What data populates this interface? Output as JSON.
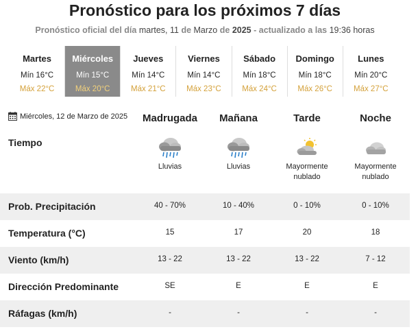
{
  "header": {
    "title": "Pronóstico para los próximos 7 días",
    "subtitle_part1": "Pronóstico oficial del día",
    "subtitle_date_pre": "martes, 11",
    "subtitle_de1": "de",
    "subtitle_month": "Marzo",
    "subtitle_de2": "de",
    "subtitle_year": "2025",
    "subtitle_part2": "- actualizado a las",
    "subtitle_time": "19:36 horas"
  },
  "days": [
    {
      "name": "Martes",
      "min": "Mín 16°C",
      "max": "Máx 22°C",
      "active": false
    },
    {
      "name": "Miércoles",
      "min": "Mín 15°C",
      "max": "Máx 20°C",
      "active": true
    },
    {
      "name": "Jueves",
      "min": "Mín 14°C",
      "max": "Máx 21°C",
      "active": false
    },
    {
      "name": "Viernes",
      "min": "Mín 14°C",
      "max": "Máx 23°C",
      "active": false
    },
    {
      "name": "Sábado",
      "min": "Mín 18°C",
      "max": "Máx 24°C",
      "active": false
    },
    {
      "name": "Domingo",
      "min": "Mín 18°C",
      "max": "Máx 26°C",
      "active": false
    },
    {
      "name": "Lunes",
      "min": "Mín 20°C",
      "max": "Máx 27°C",
      "active": false
    }
  ],
  "detail": {
    "date": "Miércoles, 12 de Marzo de 2025",
    "date_icon": "calendar-icon",
    "columns": [
      "Madrugada",
      "Mañana",
      "Tarde",
      "Noche"
    ],
    "weather_label": "Tiempo",
    "weather": [
      {
        "icon": "rain-cloud-icon",
        "desc1": "Lluvias",
        "desc2": ""
      },
      {
        "icon": "rain-cloud-icon",
        "desc1": "Lluvias",
        "desc2": ""
      },
      {
        "icon": "partly-cloudy-day-icon",
        "desc1": "Mayormente",
        "desc2": "nublado"
      },
      {
        "icon": "partly-cloudy-night-icon",
        "desc1": "Mayormente",
        "desc2": "nublado"
      }
    ],
    "rows": [
      {
        "label": "Prob. Precipitación",
        "values": [
          "40 - 70%",
          "10 - 40%",
          "0 - 10%",
          "0 - 10%"
        ]
      },
      {
        "label": "Temperatura (°C)",
        "values": [
          "15",
          "17",
          "20",
          "18"
        ]
      },
      {
        "label": "Viento (km/h)",
        "values": [
          "13 - 22",
          "13 - 22",
          "13 - 22",
          "7 - 12"
        ]
      },
      {
        "label": "Dirección Predominante",
        "values": [
          "SE",
          "E",
          "E",
          "E"
        ]
      },
      {
        "label": "Ráfagas (km/h)",
        "values": [
          "-",
          "-",
          "-",
          "-"
        ]
      }
    ]
  },
  "colors": {
    "max_temp": "#d4a13a",
    "active_day_bg": "#8a8a8a",
    "shaded_row": "#efefef"
  }
}
